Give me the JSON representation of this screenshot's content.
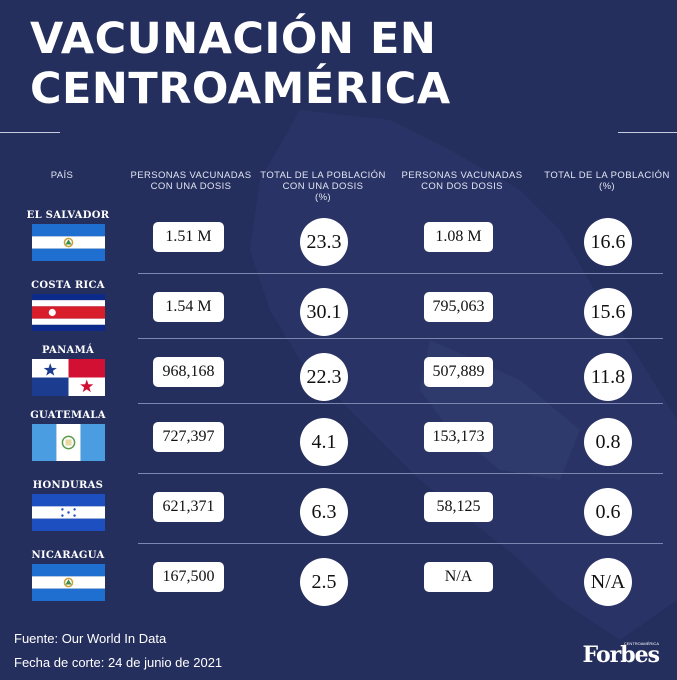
{
  "title": {
    "line1": "VACUNACIÓN EN",
    "line2": "CENTROAMÉRICA"
  },
  "headers": {
    "pais": "PAÍS",
    "one_dose": [
      "PERSONAS VACUNADAS",
      "CON UNA DOSIS"
    ],
    "one_dose_pct": [
      "TOTAL DE LA POBLACIÓN",
      "CON UNA DOSIS",
      "(%)"
    ],
    "two_dose": [
      "PERSONAS VACUNADAS",
      "CON DOS DOSIS"
    ],
    "two_dose_pct": [
      "TOTAL DE LA POBLACIÓN",
      "(%)"
    ]
  },
  "chart_data": {
    "type": "table",
    "columns": [
      "PAÍS",
      "PERSONAS VACUNADAS CON UNA DOSIS",
      "TOTAL DE LA POBLACIÓN CON UNA DOSIS (%)",
      "PERSONAS VACUNADAS CON DOS DOSIS",
      "TOTAL DE LA POBLACIÓN (%)"
    ],
    "rows": [
      {
        "country": "EL SALVADOR",
        "flag": "el-salvador-flag",
        "one_dose": "1.51 M",
        "one_dose_pct": "23.3",
        "two_dose": "1.08 M",
        "two_dose_pct": "16.6"
      },
      {
        "country": "COSTA RICA",
        "flag": "costa-rica-flag",
        "one_dose": "1.54 M",
        "one_dose_pct": "30.1",
        "two_dose": "795,063",
        "two_dose_pct": "15.6"
      },
      {
        "country": "PANAMÁ",
        "flag": "panama-flag",
        "one_dose": "968,168",
        "one_dose_pct": "22.3",
        "two_dose": "507,889",
        "two_dose_pct": "11.8"
      },
      {
        "country": "GUATEMALA",
        "flag": "guatemala-flag",
        "one_dose": "727,397",
        "one_dose_pct": "4.1",
        "two_dose": "153,173",
        "two_dose_pct": "0.8"
      },
      {
        "country": "HONDURAS",
        "flag": "honduras-flag",
        "one_dose": "621,371",
        "one_dose_pct": "6.3",
        "two_dose": "58,125",
        "two_dose_pct": "0.6"
      },
      {
        "country": "NICARAGUA",
        "flag": "nicaragua-flag",
        "one_dose": "167,500",
        "one_dose_pct": "2.5",
        "two_dose": "N/A",
        "two_dose_pct": "N/A"
      }
    ]
  },
  "footer": {
    "source": "Fuente: Our World In Data",
    "date": "Fecha de corte: 24 de junio de 2021"
  },
  "logo": {
    "text": "Forbes",
    "subtext": "CENTROAMÉRICA"
  },
  "colors": {
    "background": "#252f5e",
    "flag_blue": "#1f6fd0",
    "costa_rica_blue": "#0b2a8a",
    "costa_rica_red": "#d81e2a",
    "panama_blue": "#1c3d8f",
    "panama_red": "#d21034",
    "guatemala_blue": "#4a9de0",
    "honduras_blue": "#1e4fc0",
    "nicaragua_blue": "#1f6fd0"
  }
}
